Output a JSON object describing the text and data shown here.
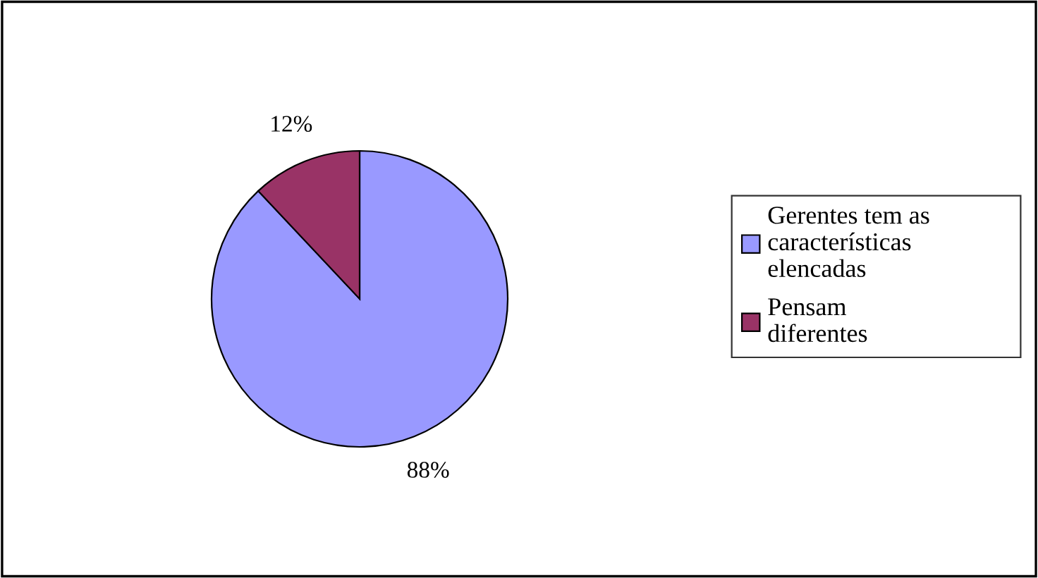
{
  "chart_data": {
    "type": "pie",
    "categories": [
      "Gerentes tem as características elencadas",
      "Pensam diferentes"
    ],
    "values": [
      88,
      12
    ],
    "colors": [
      "#9999ff",
      "#993366"
    ],
    "value_labels": [
      "88%",
      "12%"
    ],
    "legend": "right"
  }
}
